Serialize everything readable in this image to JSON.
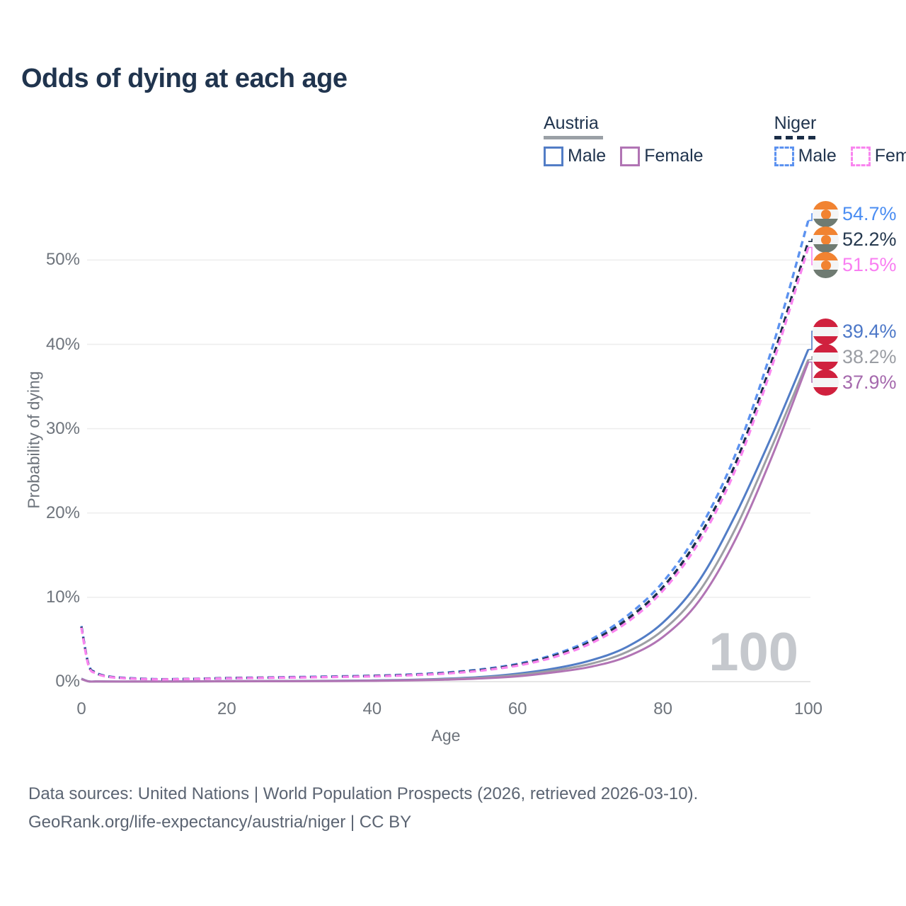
{
  "title": "Odds of dying at each age",
  "legend": {
    "groups": [
      {
        "name": "Austria",
        "line_style": "solid",
        "underline_color": "#9aa0a6",
        "items": [
          {
            "label": "Male",
            "color": "#527dc6"
          },
          {
            "label": "Female",
            "color": "#b174b4"
          }
        ]
      },
      {
        "name": "Niger",
        "line_style": "dashed",
        "underline_color": "#1b2e47",
        "items": [
          {
            "label": "Male",
            "color": "#5c92f0"
          },
          {
            "label": "Female",
            "color": "#f985ef"
          }
        ]
      }
    ]
  },
  "end_labels": [
    {
      "value": "54.7%",
      "text_color": "#4a8df2",
      "flag": "niger",
      "series": "Niger Male"
    },
    {
      "value": "52.2%",
      "text_color": "#26394f",
      "flag": "niger",
      "series": "Niger Both sexes"
    },
    {
      "value": "51.5%",
      "text_color": "#f97ef2",
      "flag": "niger",
      "series": "Niger Female"
    },
    {
      "value": "39.4%",
      "text_color": "#4d78c8",
      "flag": "austria",
      "series": "Austria Male"
    },
    {
      "value": "38.2%",
      "text_color": "#9a9da3",
      "flag": "austria",
      "series": "Austria Both sexes"
    },
    {
      "value": "37.9%",
      "text_color": "#a569ad",
      "flag": "austria",
      "series": "Austria Female"
    }
  ],
  "watermark": "100",
  "footer": {
    "line1": "Data sources: United Nations | World Population Prospects (2026, retrieved 2026-03-10).",
    "line2": "GeoRank.org/life-expectancy/austria/niger | CC BY"
  },
  "chart_data": {
    "type": "line",
    "title": "Odds of dying at each age",
    "xlabel": "Age",
    "ylabel": "Probability of dying",
    "x_ticks": [
      0,
      20,
      40,
      60,
      80,
      100
    ],
    "y_ticks": [
      "0%",
      "10%",
      "20%",
      "30%",
      "40%",
      "50%"
    ],
    "y_tick_values_pct": [
      0,
      10,
      20,
      30,
      40,
      50
    ],
    "xlim": [
      0,
      100
    ],
    "ylim_pct": [
      0,
      55
    ],
    "grid": "horizontal",
    "legend_position": "top-right",
    "ages": [
      0,
      1,
      2,
      3,
      5,
      10,
      15,
      20,
      25,
      30,
      35,
      40,
      45,
      50,
      55,
      60,
      65,
      70,
      75,
      80,
      85,
      90,
      95,
      100
    ],
    "series": [
      {
        "name": "Austria Male",
        "country": "Austria",
        "sex": "male",
        "style": "solid",
        "color": "#527dc6",
        "values_pct": [
          0.35,
          0.03,
          0.02,
          0.015,
          0.01,
          0.01,
          0.03,
          0.06,
          0.07,
          0.08,
          0.1,
          0.14,
          0.21,
          0.34,
          0.55,
          0.95,
          1.55,
          2.5,
          4.1,
          7.0,
          12.0,
          19.8,
          29.2,
          39.4
        ],
        "end_value_pct": 39.4
      },
      {
        "name": "Austria Both sexes",
        "country": "Austria",
        "sex": "both",
        "style": "solid",
        "color": "#9d9fa4",
        "values_pct": [
          0.33,
          0.027,
          0.018,
          0.013,
          0.009,
          0.009,
          0.025,
          0.05,
          0.058,
          0.066,
          0.085,
          0.12,
          0.18,
          0.29,
          0.47,
          0.8,
          1.33,
          2.1,
          3.5,
          6.1,
          10.7,
          18.2,
          27.9,
          38.2
        ],
        "end_value_pct": 38.2
      },
      {
        "name": "Austria Female",
        "country": "Austria",
        "sex": "female",
        "style": "solid",
        "color": "#b174b4",
        "values_pct": [
          0.3,
          0.024,
          0.016,
          0.012,
          0.008,
          0.008,
          0.02,
          0.035,
          0.042,
          0.05,
          0.068,
          0.095,
          0.15,
          0.23,
          0.38,
          0.63,
          1.1,
          1.75,
          2.95,
          5.3,
          9.6,
          16.9,
          26.7,
          37.9
        ],
        "end_value_pct": 37.9
      },
      {
        "name": "Niger Male",
        "country": "Niger",
        "sex": "male",
        "style": "dashed",
        "color": "#5c92f0",
        "values_pct": [
          6.6,
          2.0,
          1.1,
          0.75,
          0.5,
          0.3,
          0.33,
          0.43,
          0.49,
          0.55,
          0.62,
          0.7,
          0.84,
          1.07,
          1.46,
          2.1,
          3.2,
          4.95,
          7.75,
          11.8,
          18.0,
          27.0,
          39.5,
          54.7
        ],
        "end_value_pct": 54.7
      },
      {
        "name": "Niger Both sexes",
        "country": "Niger",
        "sex": "both",
        "style": "dashed",
        "color": "#1b2e47",
        "values_pct": [
          6.5,
          1.92,
          1.05,
          0.71,
          0.47,
          0.28,
          0.31,
          0.4,
          0.46,
          0.51,
          0.58,
          0.66,
          0.79,
          1.0,
          1.38,
          2.0,
          3.05,
          4.7,
          7.35,
          11.2,
          17.2,
          25.9,
          38.1,
          52.2
        ],
        "end_value_pct": 52.2
      },
      {
        "name": "Niger Female",
        "country": "Niger",
        "sex": "female",
        "style": "dashed",
        "color": "#f985ef",
        "values_pct": [
          6.4,
          1.85,
          1.0,
          0.68,
          0.45,
          0.27,
          0.3,
          0.38,
          0.44,
          0.49,
          0.55,
          0.62,
          0.75,
          0.95,
          1.31,
          1.9,
          2.9,
          4.5,
          7.0,
          10.8,
          16.6,
          25.2,
          37.4,
          51.5
        ],
        "end_value_pct": 51.5
      }
    ]
  }
}
